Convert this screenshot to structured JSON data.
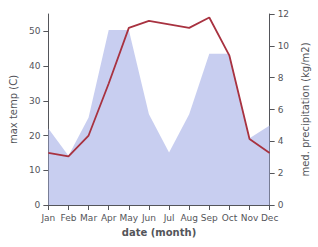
{
  "chart_data": {
    "type": "line",
    "xlabel": "date (month)",
    "ylabel": "max temp (C)",
    "y2label": "med. precipitation (kg/m2)",
    "categories": [
      "Jan",
      "Feb",
      "Mar",
      "Apr",
      "May",
      "Jun",
      "Jul",
      "Aug",
      "Sep",
      "Oct",
      "Nov",
      "Dec"
    ],
    "series": [
      {
        "type": "area",
        "color": "#aab4e8",
        "axis": "y2",
        "values": [
          4.8,
          3.1,
          5.5,
          11.0,
          11.0,
          5.7,
          3.3,
          5.7,
          9.5,
          9.5,
          4.2,
          5.0
        ]
      },
      {
        "type": "line",
        "color": "#a83240",
        "values": [
          15,
          14,
          20,
          35,
          51,
          53,
          52,
          51,
          54,
          43,
          19,
          15
        ]
      }
    ],
    "ylim": [
      0,
      55
    ],
    "yticks": [
      0,
      10,
      20,
      30,
      40,
      50
    ],
    "y2lim": [
      0,
      12
    ],
    "y2ticks": [
      0,
      2,
      4,
      6,
      8,
      10,
      12
    ],
    "grid": false
  }
}
